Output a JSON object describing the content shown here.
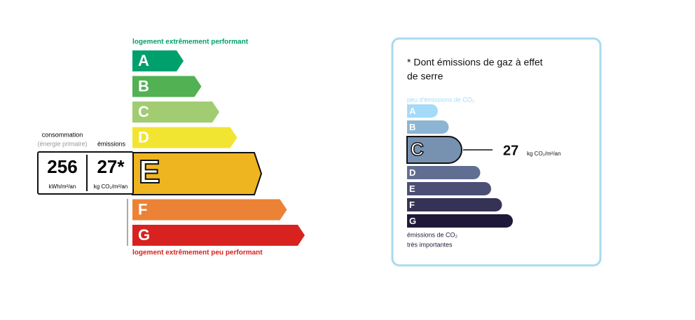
{
  "energy_label": {
    "top_label": "logement extrêmement performant",
    "bottom_label": "logement extrêmement peu performant",
    "top_color": "#00a06d",
    "bottom_color": "#d7221f",
    "current_class": "E",
    "classes": [
      {
        "letter": "A",
        "color": "#00a06d"
      },
      {
        "letter": "B",
        "color": "#52b153"
      },
      {
        "letter": "C",
        "color": "#a1cc72"
      },
      {
        "letter": "D",
        "color": "#f2e531"
      },
      {
        "letter": "E",
        "color": "#efb520"
      },
      {
        "letter": "F",
        "color": "#ec8235"
      },
      {
        "letter": "G",
        "color": "#d7221f"
      }
    ],
    "consumption_heading": "consommation",
    "consumption_subheading": "(énergie primaire)",
    "emissions_heading": "émissions",
    "consumption_value": "256",
    "consumption_unit": "kWh/m²/an",
    "emissions_value": "27*",
    "emissions_unit": "kg CO₂/m²/an"
  },
  "climate_label": {
    "title_lines": [
      "* Dont émissions de gaz à effet",
      "de serre"
    ],
    "top_label": "peu d'émissions de CO₂",
    "bottom_lines": [
      "émissions de CO₂",
      "très importantes"
    ],
    "current_class": "C",
    "value": "27",
    "unit": "kg CO₂/m²/an",
    "classes": [
      {
        "letter": "A",
        "color": "#a4dbf8"
      },
      {
        "letter": "B",
        "color": "#8cb4d3"
      },
      {
        "letter": "C",
        "color": "#7792b1"
      },
      {
        "letter": "D",
        "color": "#606e92"
      },
      {
        "letter": "E",
        "color": "#4b4e75"
      },
      {
        "letter": "F",
        "color": "#353355"
      },
      {
        "letter": "G",
        "color": "#1e1939"
      }
    ]
  }
}
